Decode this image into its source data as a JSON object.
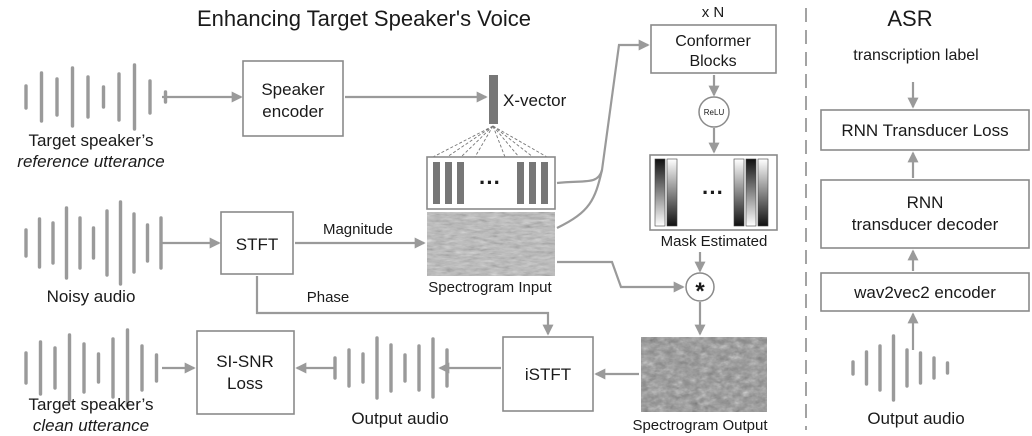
{
  "title": "Enhancing Target Speaker's Voice",
  "asr_title": "ASR",
  "x_n": "x N",
  "speaker_encoder": [
    "Speaker",
    "encoder"
  ],
  "x_vector": "X-vector",
  "conformer": [
    "Conformer",
    "Blocks"
  ],
  "relu": "ReLU",
  "mask_estimated": "Mask Estimated",
  "stft": "STFT",
  "istft": "iSTFT",
  "magnitude": "Magnitude",
  "phase": "Phase",
  "spectrogram_input": "Spectrogram Input",
  "spectrogram_output": "Spectrogram Output",
  "multiply": "*",
  "ellipsis": "···",
  "si_snr_loss": [
    "SI-SNR",
    "Loss"
  ],
  "output_audio": "Output audio",
  "ref_caption": [
    "Target speaker’s",
    "reference utterance"
  ],
  "noisy_caption": "Noisy audio",
  "clean_caption": [
    "Target speaker’s",
    "clean utterance"
  ],
  "transcription_label": "transcription label",
  "rnnt_loss": "RNN Transducer Loss",
  "rnnt_decoder": [
    "RNN",
    "transducer decoder"
  ],
  "wav2vec2_encoder": "wav2vec2 encoder",
  "asr_output_audio": "Output audio",
  "colors": {
    "line": "#9a9a9a",
    "box_stroke": "#8a8a8a",
    "text": "#1a1a1a",
    "separator": "#999999"
  }
}
